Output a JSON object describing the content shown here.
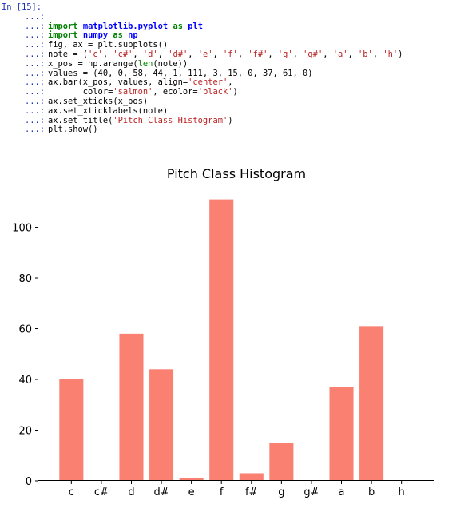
{
  "cell": {
    "prompt": "In [15]:",
    "continuation": "...:",
    "lines": [
      [],
      [
        {
          "t": "import",
          "c": "kw"
        },
        {
          "t": " "
        },
        {
          "t": "matplotlib.pyplot",
          "c": "mod"
        },
        {
          "t": " "
        },
        {
          "t": "as",
          "c": "kw"
        },
        {
          "t": " "
        },
        {
          "t": "plt",
          "c": "mod"
        }
      ],
      [
        {
          "t": "import",
          "c": "kw"
        },
        {
          "t": " "
        },
        {
          "t": "numpy",
          "c": "mod"
        },
        {
          "t": " "
        },
        {
          "t": "as",
          "c": "kw"
        },
        {
          "t": " "
        },
        {
          "t": "np",
          "c": "mod"
        }
      ],
      [
        {
          "t": "fig, ax = plt.subplots()"
        }
      ],
      [
        {
          "t": "note = ("
        },
        {
          "t": "'c'",
          "c": "str"
        },
        {
          "t": ", "
        },
        {
          "t": "'c#'",
          "c": "str"
        },
        {
          "t": ", "
        },
        {
          "t": "'d'",
          "c": "str"
        },
        {
          "t": ", "
        },
        {
          "t": "'d#'",
          "c": "str"
        },
        {
          "t": ", "
        },
        {
          "t": "'e'",
          "c": "str"
        },
        {
          "t": ", "
        },
        {
          "t": "'f'",
          "c": "str"
        },
        {
          "t": ", "
        },
        {
          "t": "'f#'",
          "c": "str"
        },
        {
          "t": ", "
        },
        {
          "t": "'g'",
          "c": "str"
        },
        {
          "t": ", "
        },
        {
          "t": "'g#'",
          "c": "str"
        },
        {
          "t": ", "
        },
        {
          "t": "'a'",
          "c": "str"
        },
        {
          "t": ", "
        },
        {
          "t": "'b'",
          "c": "str"
        },
        {
          "t": ", "
        },
        {
          "t": "'h'",
          "c": "str"
        },
        {
          "t": ")"
        }
      ],
      [
        {
          "t": "x_pos = np.arange("
        },
        {
          "t": "len",
          "c": "bi"
        },
        {
          "t": "(note))"
        }
      ],
      [
        {
          "t": "values = (40, 0, 58, 44, 1, 111, 3, 15, 0, 37, 61, 0)"
        }
      ],
      [
        {
          "t": "ax.bar(x_pos, values, align="
        },
        {
          "t": "'center'",
          "c": "str"
        },
        {
          "t": ","
        }
      ],
      [
        {
          "t": "       color="
        },
        {
          "t": "'salmon'",
          "c": "str"
        },
        {
          "t": ", ecolor="
        },
        {
          "t": "'black'",
          "c": "str"
        },
        {
          "t": ")"
        }
      ],
      [
        {
          "t": "ax.set_xticks(x_pos)"
        }
      ],
      [
        {
          "t": "ax.set_xticklabels(note)"
        }
      ],
      [
        {
          "t": "ax.set_title("
        },
        {
          "t": "'Pitch Class Histogram'",
          "c": "str"
        },
        {
          "t": ")"
        }
      ],
      [
        {
          "t": "plt.show()"
        }
      ]
    ]
  },
  "chart_data": {
    "type": "bar",
    "title": "Pitch Class Histogram",
    "categories": [
      "c",
      "c#",
      "d",
      "d#",
      "e",
      "f",
      "f#",
      "g",
      "g#",
      "a",
      "b",
      "h"
    ],
    "values": [
      40,
      0,
      58,
      44,
      1,
      111,
      3,
      15,
      0,
      37,
      61,
      0
    ],
    "xlabel": "",
    "ylabel": "",
    "ylim": [
      0,
      116.55
    ],
    "yticks": [
      0,
      20,
      40,
      60,
      80,
      100
    ],
    "bar_color": "#fa8072",
    "grid": false
  }
}
